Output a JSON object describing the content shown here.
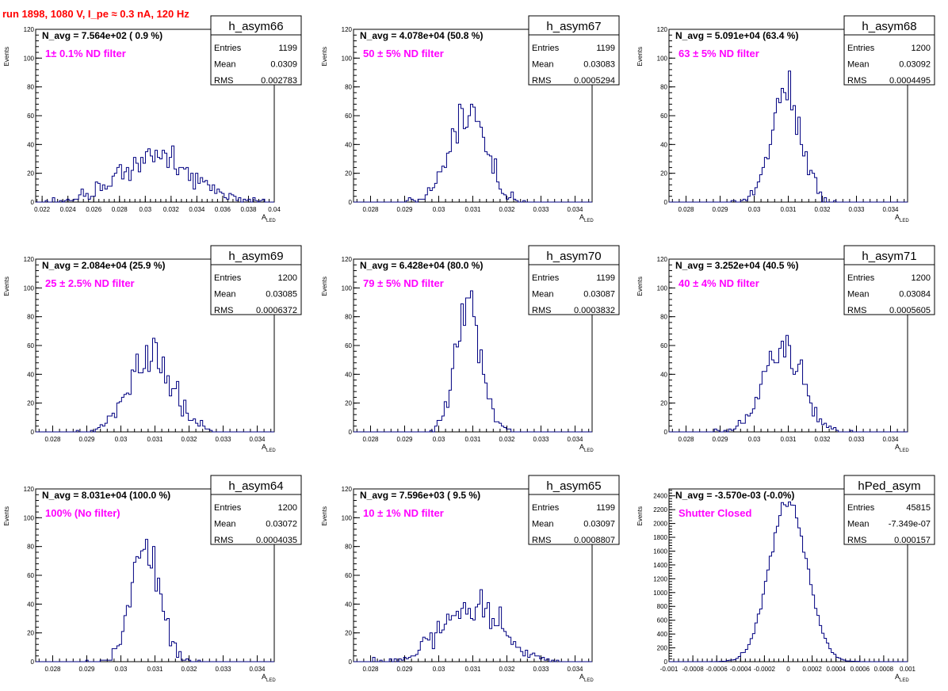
{
  "page_title": "run 1898,  1080 V, I_pe ≈ 0.3 nA, 120 Hz",
  "colors": {
    "title": "#ff0000",
    "annotation": "#ff00ff",
    "histogram": "#000080",
    "text": "#000000"
  },
  "common": {
    "xlabel_main": "A",
    "xlabel_sub": "LED",
    "ylabel": "Events",
    "stat_labels": [
      "Entries",
      "Mean",
      "RMS"
    ]
  },
  "chart_data": [
    {
      "type": "histogram",
      "name": "h_asym66",
      "info": "N_avg = 7.564e+02 ( 0.9 %)",
      "note": "1± 0.1% ND filter",
      "entries": "1199",
      "mean": "0.0309",
      "rms": "0.002783",
      "xlim": [
        0.0215,
        0.04
      ],
      "ylim": [
        0,
        120
      ],
      "xticks": [
        "0.022",
        "0.024",
        "0.026",
        "0.028",
        "0.03",
        "0.032",
        "0.034",
        "0.036",
        "0.038",
        "0.04"
      ],
      "xtick_values": [
        0.022,
        0.024,
        0.026,
        0.028,
        0.03,
        0.032,
        0.034,
        0.036,
        0.038,
        0.04
      ],
      "yticks": [
        "0",
        "20",
        "40",
        "60",
        "80",
        "100",
        "120"
      ],
      "ytick_values": [
        0,
        20,
        40,
        60,
        80,
        100,
        120
      ],
      "mean_value": 0.0309,
      "sigma": 0.002783,
      "n_entries": 1199,
      "bins": 100
    },
    {
      "type": "histogram",
      "name": "h_asym67",
      "info": "N_avg = 4.078e+04 (50.8 %)",
      "note": "50 ± 5% ND filter",
      "entries": "1199",
      "mean": "0.03083",
      "rms": "0.0005294",
      "xlim": [
        0.0275,
        0.0345
      ],
      "ylim": [
        0,
        120
      ],
      "xticks": [
        "0.028",
        "0.029",
        "0.03",
        "0.031",
        "0.032",
        "0.033",
        "0.034"
      ],
      "xtick_values": [
        0.028,
        0.029,
        0.03,
        0.031,
        0.032,
        0.033,
        0.034
      ],
      "yticks": [
        "0",
        "20",
        "40",
        "60",
        "80",
        "100",
        "120"
      ],
      "ytick_values": [
        0,
        20,
        40,
        60,
        80,
        100,
        120
      ],
      "mean_value": 0.03083,
      "sigma": 0.0005294,
      "n_entries": 1199,
      "bins": 100
    },
    {
      "type": "histogram",
      "name": "h_asym68",
      "info": "N_avg = 5.091e+04 (63.4 %)",
      "note": "63 ± 5% ND filter",
      "entries": "1200",
      "mean": "0.03092",
      "rms": "0.0004495",
      "xlim": [
        0.0275,
        0.0345
      ],
      "ylim": [
        0,
        120
      ],
      "xticks": [
        "0.028",
        "0.029",
        "0.03",
        "0.031",
        "0.032",
        "0.033",
        "0.034"
      ],
      "xtick_values": [
        0.028,
        0.029,
        0.03,
        0.031,
        0.032,
        0.033,
        0.034
      ],
      "yticks": [
        "0",
        "20",
        "40",
        "60",
        "80",
        "100",
        "120"
      ],
      "ytick_values": [
        0,
        20,
        40,
        60,
        80,
        100,
        120
      ],
      "mean_value": 0.03092,
      "sigma": 0.0004495,
      "n_entries": 1200,
      "bins": 100
    },
    {
      "type": "histogram",
      "name": "h_asym69",
      "info": "N_avg = 2.084e+04 (25.9 %)",
      "note": "25 ± 2.5% ND filter",
      "entries": "1200",
      "mean": "0.03085",
      "rms": "0.0006372",
      "xlim": [
        0.0275,
        0.0345
      ],
      "ylim": [
        0,
        120
      ],
      "xticks": [
        "0.028",
        "0.029",
        "0.03",
        "0.031",
        "0.032",
        "0.033",
        "0.034"
      ],
      "xtick_values": [
        0.028,
        0.029,
        0.03,
        0.031,
        0.032,
        0.033,
        0.034
      ],
      "yticks": [
        "0",
        "20",
        "40",
        "60",
        "80",
        "100",
        "120"
      ],
      "ytick_values": [
        0,
        20,
        40,
        60,
        80,
        100,
        120
      ],
      "mean_value": 0.03085,
      "sigma": 0.0006372,
      "n_entries": 1200,
      "bins": 100
    },
    {
      "type": "histogram",
      "name": "h_asym70",
      "info": "N_avg = 6.428e+04 (80.0 %)",
      "note": "79 ± 5% ND filter",
      "entries": "1199",
      "mean": "0.03087",
      "rms": "0.0003832",
      "xlim": [
        0.0275,
        0.0345
      ],
      "ylim": [
        0,
        120
      ],
      "xticks": [
        "0.028",
        "0.029",
        "0.03",
        "0.031",
        "0.032",
        "0.033",
        "0.034"
      ],
      "xtick_values": [
        0.028,
        0.029,
        0.03,
        0.031,
        0.032,
        0.033,
        0.034
      ],
      "yticks": [
        "0",
        "20",
        "40",
        "60",
        "80",
        "100",
        "120"
      ],
      "ytick_values": [
        0,
        20,
        40,
        60,
        80,
        100,
        120
      ],
      "mean_value": 0.03087,
      "sigma": 0.0003832,
      "n_entries": 1199,
      "bins": 100
    },
    {
      "type": "histogram",
      "name": "h_asym71",
      "info": "N_avg = 3.252e+04 (40.5 %)",
      "note": "40 ± 4% ND filter",
      "entries": "1200",
      "mean": "0.03084",
      "rms": "0.0005605",
      "xlim": [
        0.0275,
        0.0345
      ],
      "ylim": [
        0,
        120
      ],
      "xticks": [
        "0.028",
        "0.029",
        "0.03",
        "0.031",
        "0.032",
        "0.033",
        "0.034"
      ],
      "xtick_values": [
        0.028,
        0.029,
        0.03,
        0.031,
        0.032,
        0.033,
        0.034
      ],
      "yticks": [
        "0",
        "20",
        "40",
        "60",
        "80",
        "100",
        "120"
      ],
      "ytick_values": [
        0,
        20,
        40,
        60,
        80,
        100,
        120
      ],
      "mean_value": 0.03084,
      "sigma": 0.0005605,
      "n_entries": 1200,
      "bins": 100
    },
    {
      "type": "histogram",
      "name": "h_asym64",
      "info": "N_avg = 8.031e+04 (100.0 %)",
      "note": "100% (No filter)",
      "entries": "1200",
      "mean": "0.03072",
      "rms": "0.0004035",
      "xlim": [
        0.0275,
        0.0345
      ],
      "ylim": [
        0,
        120
      ],
      "xticks": [
        "0.028",
        "0.029",
        "0.03",
        "0.031",
        "0.032",
        "0.033",
        "0.034"
      ],
      "xtick_values": [
        0.028,
        0.029,
        0.03,
        0.031,
        0.032,
        0.033,
        0.034
      ],
      "yticks": [
        "0",
        "20",
        "40",
        "60",
        "80",
        "100",
        "120"
      ],
      "ytick_values": [
        0,
        20,
        40,
        60,
        80,
        100,
        120
      ],
      "mean_value": 0.03072,
      "sigma": 0.0004035,
      "n_entries": 1200,
      "bins": 100
    },
    {
      "type": "histogram",
      "name": "h_asym65",
      "info": "N_avg = 7.596e+03 ( 9.5 %)",
      "note": "10 ± 1% ND filter",
      "entries": "1199",
      "mean": "0.03097",
      "rms": "0.0008807",
      "xlim": [
        0.0275,
        0.0345
      ],
      "ylim": [
        0,
        120
      ],
      "xticks": [
        "0.028",
        "0.029",
        "0.03",
        "0.031",
        "0.032",
        "0.033",
        "0.034"
      ],
      "xtick_values": [
        0.028,
        0.029,
        0.03,
        0.031,
        0.032,
        0.033,
        0.034
      ],
      "yticks": [
        "0",
        "20",
        "40",
        "60",
        "80",
        "100",
        "120"
      ],
      "ytick_values": [
        0,
        20,
        40,
        60,
        80,
        100,
        120
      ],
      "mean_value": 0.03097,
      "sigma": 0.0008807,
      "n_entries": 1199,
      "bins": 100
    },
    {
      "type": "histogram",
      "name": "hPed_asym",
      "info": "N_avg = -3.570e-03 (-0.0%)",
      "note": "Shutter Closed",
      "entries": "45815",
      "mean": "-7.349e-07",
      "rms": "0.000157",
      "xlim": [
        -0.001,
        0.001
      ],
      "ylim": [
        0,
        2500
      ],
      "xticks": [
        "-0.001",
        "-0.0008",
        "-0.0006",
        "-0.0004",
        "-0.0002",
        "0",
        "0.0002",
        "0.0004",
        "0.0006",
        "0.0008",
        "0.001"
      ],
      "xtick_values": [
        -0.001,
        -0.0008,
        -0.0006,
        -0.0004,
        -0.0002,
        0,
        0.0002,
        0.0004,
        0.0006,
        0.0008,
        0.001
      ],
      "yticks": [
        "0",
        "200",
        "400",
        "600",
        "800",
        "1000",
        "1200",
        "1400",
        "1600",
        "1800",
        "2000",
        "2200",
        "2400"
      ],
      "ytick_values": [
        0,
        200,
        400,
        600,
        800,
        1000,
        1200,
        1400,
        1600,
        1800,
        2000,
        2200,
        2400
      ],
      "mean_value": 0,
      "sigma": 0.000157,
      "n_entries": 45815,
      "bins": 100
    }
  ]
}
